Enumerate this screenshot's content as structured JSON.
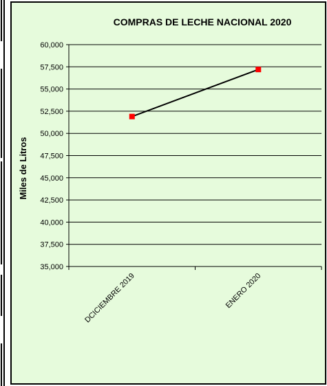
{
  "chart_data": {
    "type": "line",
    "title": "COMPRAS DE LECHE NACIONAL 2020",
    "ylabel": "Miles de Litros",
    "xlabel": "",
    "categories": [
      "DCICIEMBRE 2019",
      "ENERO 2020"
    ],
    "series": [
      {
        "values": [
          51900,
          57200
        ]
      }
    ],
    "ylim": [
      35000,
      60000
    ],
    "yticks": [
      "60,000",
      "57,500",
      "55,000",
      "52,500",
      "50,000",
      "47,500",
      "45,000",
      "42,500",
      "40,000",
      "37,500",
      "35,000"
    ],
    "grid": true,
    "legend": "none",
    "colors": {
      "line": "#000000",
      "marker": "#ff0000",
      "background": "#e6fbdc",
      "grid": "#000000"
    }
  }
}
